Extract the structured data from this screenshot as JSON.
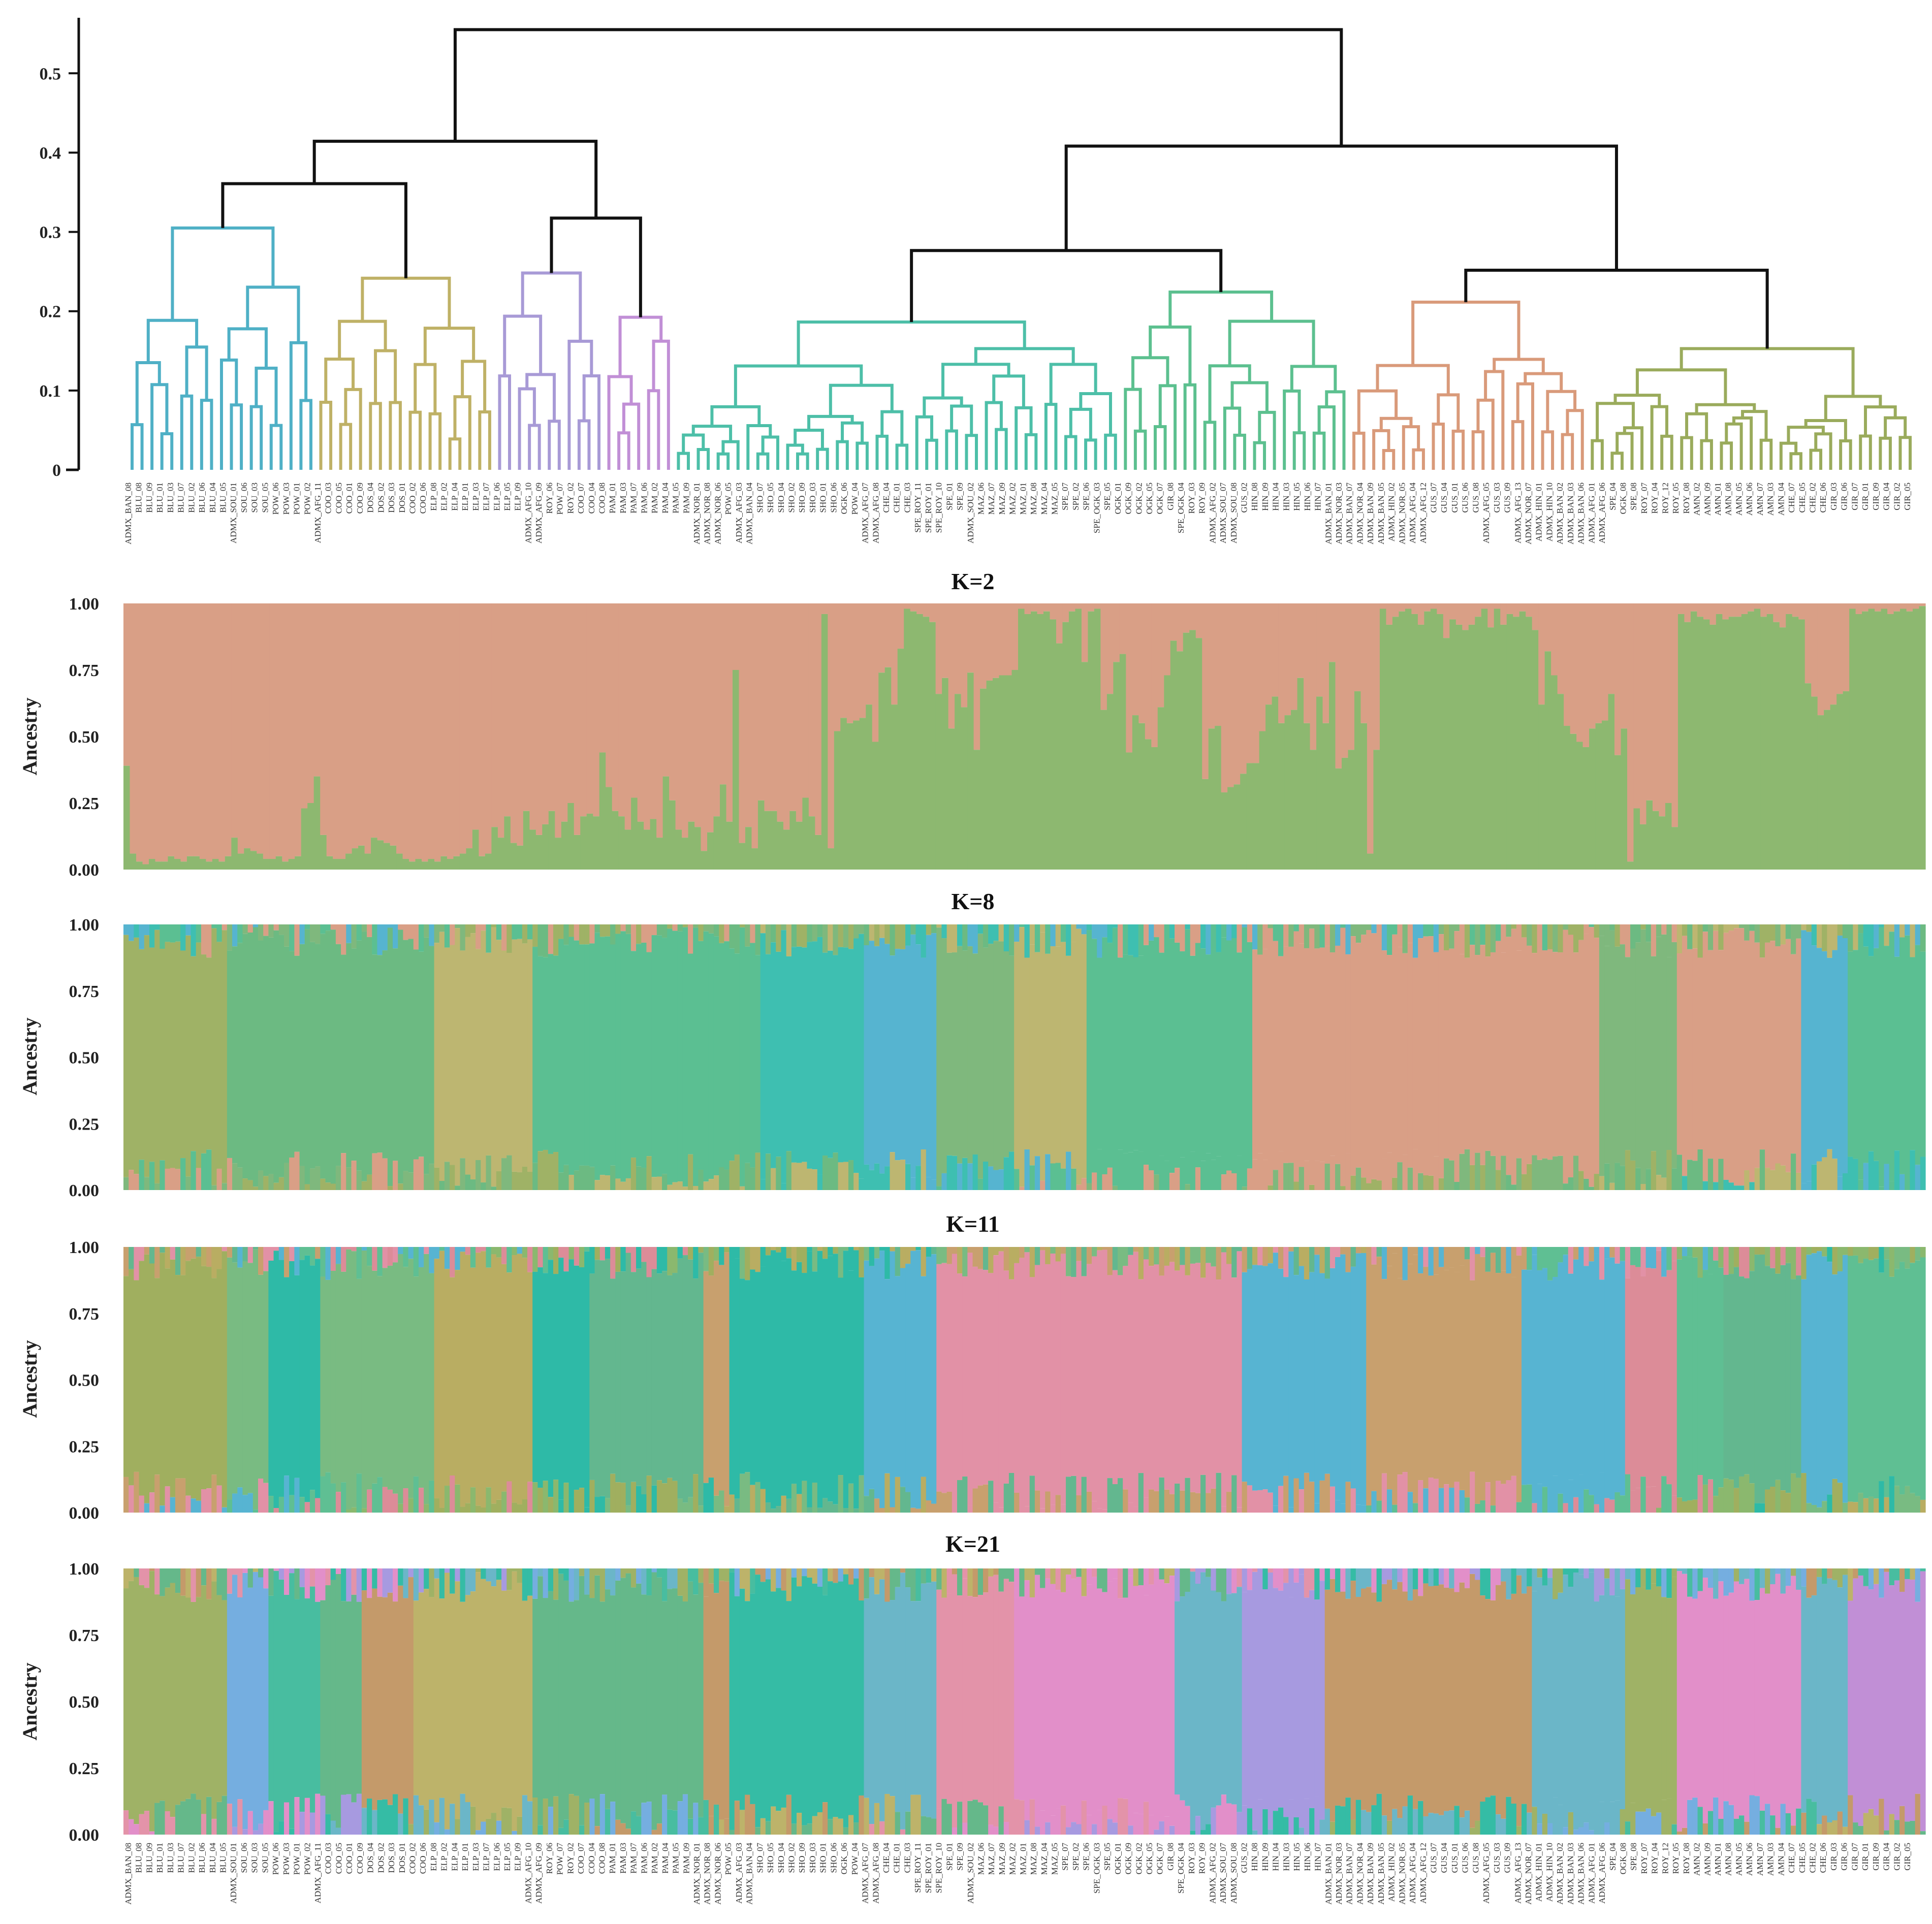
{
  "chart_data": [
    {
      "type": "dendrogram",
      "title": "",
      "ylabel": "",
      "ylim": [
        0,
        0.57
      ],
      "yticks": [
        "0",
        "0.1",
        "0.2",
        "0.3",
        "0.4",
        "0.5"
      ],
      "ytick_values": [
        0,
        0.1,
        0.2,
        0.3,
        0.4,
        0.5
      ],
      "clade_colors": [
        "#9aab5c",
        "#4fb0c6",
        "#4dbfa8",
        "#c9a46a",
        "#bfb166",
        "#5cc08f",
        "#d98aa8",
        "#a89ad6",
        "#d99a7a",
        "#8fbe6b",
        "#c18fd6"
      ],
      "root_height": 0.555
    },
    {
      "type": "stacked_bar",
      "title": "K=2",
      "ylabel": "Ancestry",
      "ylim": [
        0,
        1
      ],
      "yticks": [
        "0.00",
        "0.25",
        "0.50",
        "0.75",
        "1.00"
      ],
      "components": [
        "#d99f86",
        "#8db870"
      ],
      "green_fraction": [
        0.39,
        0.06,
        0.03,
        0.02,
        0.04,
        0.03,
        0.03,
        0.05,
        0.04,
        0.03,
        0.05,
        0.05,
        0.04,
        0.03,
        0.04,
        0.03,
        0.05,
        0.12,
        0.06,
        0.08,
        0.07,
        0.06,
        0.04,
        0.04,
        0.05,
        0.03,
        0.04,
        0.05,
        0.23,
        0.25,
        0.35,
        0.13,
        0.05,
        0.04,
        0.04,
        0.06,
        0.08,
        0.09,
        0.06,
        0.12,
        0.11,
        0.1,
        0.09,
        0.06,
        0.04,
        0.03,
        0.04,
        0.03,
        0.04,
        0.03,
        0.05,
        0.04,
        0.05,
        0.06,
        0.08,
        0.15,
        0.05,
        0.06,
        0.16,
        0.12,
        0.2,
        0.1,
        0.09,
        0.22,
        0.15,
        0.13,
        0.17,
        0.22,
        0.12,
        0.18,
        0.25,
        0.13,
        0.2,
        0.21,
        0.2,
        0.44,
        0.31,
        0.22,
        0.2,
        0.15,
        0.27,
        0.18,
        0.15,
        0.19,
        0.12,
        0.35,
        0.26,
        0.15,
        0.12,
        0.18,
        0.16,
        0.07,
        0.14,
        0.2,
        0.32,
        0.18,
        0.75,
        0.1,
        0.16,
        0.08,
        0.26,
        0.22,
        0.22,
        0.18,
        0.15,
        0.22,
        0.18,
        0.27,
        0.2,
        0.13,
        0.96,
        0.08,
        0.52,
        0.57,
        0.55,
        0.56,
        0.57,
        0.62,
        0.48,
        0.74,
        0.76,
        0.62,
        0.83,
        0.98,
        0.97,
        0.96,
        0.95,
        0.93,
        0.66,
        0.72,
        0.53,
        0.66,
        0.61,
        0.74,
        0.45,
        0.68,
        0.71,
        0.72,
        0.73,
        0.73,
        0.75,
        0.98,
        0.96,
        0.97,
        0.96,
        0.97,
        0.94,
        0.85,
        0.93,
        0.97,
        0.98,
        0.78,
        0.97,
        0.98,
        0.6,
        0.66,
        0.78,
        0.81,
        0.44,
        0.58,
        0.55,
        0.49,
        0.46,
        0.61,
        0.73,
        0.86,
        0.82,
        0.89,
        0.9,
        0.87,
        0.34,
        0.53,
        0.54,
        0.29,
        0.31,
        0.32,
        0.36,
        0.4,
        0.4,
        0.52,
        0.62,
        0.65,
        0.55,
        0.58,
        0.6,
        0.72,
        0.55,
        0.45,
        0.65,
        0.55,
        0.78,
        0.38,
        0.42,
        0.45,
        0.67,
        0.55,
        0.06,
        0.45,
        0.98,
        0.92,
        0.95,
        0.97,
        0.98,
        0.96,
        0.92,
        0.97,
        0.98,
        0.96,
        0.87,
        0.94,
        0.92,
        0.9,
        0.92,
        0.95,
        0.98,
        0.91,
        0.98,
        0.92,
        0.96,
        0.95,
        0.97,
        0.95,
        0.9,
        0.62,
        0.82,
        0.73,
        0.66,
        0.54,
        0.51,
        0.48,
        0.46,
        0.53,
        0.55,
        0.56,
        0.66,
        0.43,
        0.53,
        0.03,
        0.23,
        0.17,
        0.26,
        0.22,
        0.2,
        0.25,
        0.16,
        0.96,
        0.93,
        0.97,
        0.95,
        0.94,
        0.92,
        0.96,
        0.94,
        0.95,
        0.95,
        0.96,
        0.97,
        0.98,
        0.95,
        0.96,
        0.93,
        0.91,
        0.96,
        0.95,
        0.94,
        0.7,
        0.65,
        0.58,
        0.6,
        0.62,
        0.66,
        0.67,
        0.98,
        0.96,
        0.97,
        0.98,
        0.97,
        0.98,
        0.96,
        0.97,
        0.98,
        0.97,
        0.98,
        0.99
      ]
    },
    {
      "type": "stacked_bar",
      "title": "K=8",
      "ylabel": "Ancestry",
      "ylim": [
        0,
        1
      ],
      "yticks": [
        "0.00",
        "0.25",
        "0.50",
        "0.75",
        "1.00"
      ],
      "segments_note": "dominant component per sample group",
      "components": [
        "#9fb266",
        "#6cba82",
        "#bdb671",
        "#3ebfb1",
        "#56b4d0",
        "#5bbf92",
        "#d99f86",
        "#7fb87d"
      ],
      "groups": [
        {
          "from": 0,
          "to": 20,
          "color": "#9fb266"
        },
        {
          "from": 20,
          "to": 60,
          "color": "#6cba82"
        },
        {
          "from": 60,
          "to": 79,
          "color": "#bdb671"
        },
        {
          "from": 79,
          "to": 123,
          "color": "#5bbf92"
        },
        {
          "from": 123,
          "to": 143,
          "color": "#3ebfb1"
        },
        {
          "from": 143,
          "to": 157,
          "color": "#56b4d0"
        },
        {
          "from": 157,
          "to": 172,
          "color": "#7fb87d"
        },
        {
          "from": 172,
          "to": 186,
          "color": "#bdb671"
        },
        {
          "from": 186,
          "to": 218,
          "color": "#5bbf92"
        },
        {
          "from": 218,
          "to": 255,
          "color": "#d99f86"
        },
        {
          "from": 255,
          "to": 285,
          "color": "#d99f86"
        },
        {
          "from": 285,
          "to": 300,
          "color": "#7fb87d"
        },
        {
          "from": 300,
          "to": 324,
          "color": "#d99f86"
        },
        {
          "from": 324,
          "to": 333,
          "color": "#56b4d0"
        },
        {
          "from": 333,
          "to": 348,
          "color": "#5bbf92"
        }
      ]
    },
    {
      "type": "stacked_bar",
      "title": "K=11",
      "ylabel": "Ancestry",
      "ylim": [
        0,
        1
      ],
      "yticks": [
        "0.00",
        "0.25",
        "0.50",
        "0.75",
        "1.00"
      ],
      "components": [
        "#a0af5f",
        "#2ebaa7",
        "#79bb82",
        "#b9ad62",
        "#63b78f",
        "#c8a06e",
        "#e291a6",
        "#57b4d2",
        "#5fbf93",
        "#dc8c98",
        "#8bb86e"
      ],
      "groups": [
        {
          "from": 0,
          "to": 20,
          "color": "#a0af5f"
        },
        {
          "from": 20,
          "to": 28,
          "color": "#79bb82"
        },
        {
          "from": 28,
          "to": 38,
          "color": "#2ebaa7"
        },
        {
          "from": 38,
          "to": 60,
          "color": "#79bb82"
        },
        {
          "from": 60,
          "to": 79,
          "color": "#b9ad62"
        },
        {
          "from": 79,
          "to": 90,
          "color": "#2ebaa7"
        },
        {
          "from": 90,
          "to": 112,
          "color": "#63b78f"
        },
        {
          "from": 112,
          "to": 117,
          "color": "#c8a06e"
        },
        {
          "from": 117,
          "to": 143,
          "color": "#2ebaa7"
        },
        {
          "from": 143,
          "to": 157,
          "color": "#57b4d2"
        },
        {
          "from": 157,
          "to": 216,
          "color": "#e291a6"
        },
        {
          "from": 216,
          "to": 240,
          "color": "#57b4d2"
        },
        {
          "from": 240,
          "to": 270,
          "color": "#c8a06e"
        },
        {
          "from": 270,
          "to": 290,
          "color": "#57b4d2"
        },
        {
          "from": 290,
          "to": 300,
          "color": "#dc8c98"
        },
        {
          "from": 300,
          "to": 309,
          "color": "#5fbf93"
        },
        {
          "from": 309,
          "to": 324,
          "color": "#63b78f"
        },
        {
          "from": 324,
          "to": 333,
          "color": "#57b4d2"
        },
        {
          "from": 333,
          "to": 348,
          "color": "#5fbf93"
        }
      ]
    },
    {
      "type": "stacked_bar",
      "title": "K=21",
      "ylabel": "Ancestry",
      "ylim": [
        0,
        1
      ],
      "yticks": [
        "0.00",
        "0.25",
        "0.50",
        "0.75",
        "1.00"
      ],
      "components": [
        "#9fb266",
        "#75aee0",
        "#48bda0",
        "#c49a6a",
        "#bdb36a",
        "#65b88a",
        "#e393a9",
        "#e28fc9",
        "#a79ae0",
        "#35bca5",
        "#6bb6c8"
      ],
      "groups": [
        {
          "from": 0,
          "to": 20,
          "color": "#9fb266"
        },
        {
          "from": 20,
          "to": 28,
          "color": "#75aee0"
        },
        {
          "from": 28,
          "to": 38,
          "color": "#48bda0"
        },
        {
          "from": 38,
          "to": 46,
          "color": "#65b88a"
        },
        {
          "from": 46,
          "to": 56,
          "color": "#c49a6a"
        },
        {
          "from": 56,
          "to": 79,
          "color": "#bdb36a"
        },
        {
          "from": 79,
          "to": 90,
          "color": "#65b88a"
        },
        {
          "from": 90,
          "to": 112,
          "color": "#65b88a"
        },
        {
          "from": 112,
          "to": 117,
          "color": "#c49a6a"
        },
        {
          "from": 117,
          "to": 143,
          "color": "#35bca5"
        },
        {
          "from": 143,
          "to": 157,
          "color": "#6bb6c8"
        },
        {
          "from": 157,
          "to": 172,
          "color": "#e393a9"
        },
        {
          "from": 172,
          "to": 203,
          "color": "#e28fc9"
        },
        {
          "from": 203,
          "to": 216,
          "color": "#6bb6c8"
        },
        {
          "from": 216,
          "to": 232,
          "color": "#a79ae0"
        },
        {
          "from": 232,
          "to": 272,
          "color": "#c49a6a"
        },
        {
          "from": 272,
          "to": 290,
          "color": "#6bb6c8"
        },
        {
          "from": 290,
          "to": 300,
          "color": "#9fb266"
        },
        {
          "from": 300,
          "to": 324,
          "color": "#e28fc9"
        },
        {
          "from": 324,
          "to": 333,
          "color": "#6bb6c8"
        },
        {
          "from": 333,
          "to": 348,
          "color": "#c18fd6"
        }
      ]
    }
  ],
  "sample_labels_top": [
    "ADMX_BAN_08",
    "BLU_08",
    "BLU_09",
    "BLU_01",
    "BLU_03",
    "BLU_07",
    "BLU_02",
    "BLU_06",
    "BLU_04",
    "BLU_05",
    "ADMX_SOU_01",
    "SOU_06",
    "SOU_03",
    "SOU_05",
    "POW_06",
    "POW_03",
    "POW_01",
    "POW_02",
    "ADMX_AFG_11",
    "COO_03",
    "COO_05",
    "COO_01",
    "COO_09",
    "DOS_04",
    "DOS_02",
    "DOS_03",
    "DOS_01",
    "COO_02",
    "COO_06",
    "ELP_08",
    "ELP_02",
    "ELP_04",
    "ELP_01",
    "ELP_03",
    "ELP_07",
    "ELP_06",
    "ELP_05",
    "ELP_09",
    "ADMX_AFG_10",
    "ADMX_AFG_09",
    "ROY_06",
    "POW_07",
    "ROY_02",
    "COO_07",
    "COO_04",
    "COO_08",
    "PAM_01",
    "PAM_03",
    "PAM_07",
    "PAM_06",
    "PAM_02",
    "PAM_04",
    "PAM_05",
    "PAM_09",
    "ADMX_NOR_01",
    "ADMX_NOR_08",
    "ADMX_NOR_06",
    "POW_05",
    "ADMX_AFG_03",
    "ADMX_BAN_04",
    "SHO_07",
    "SHO_05",
    "SHO_04",
    "SHO_02",
    "SHO_09",
    "SHO_03",
    "SHO_01",
    "SHO_06",
    "OGK_06",
    "POW_04",
    "ADMX_AFG_07",
    "ADMX_AFG_08",
    "CHE_04",
    "CHE_01",
    "CHE_03",
    "SPE_ROY_11",
    "SPE_ROY_01",
    "SPE_ROY_10",
    "SPE_01",
    "SPE_09",
    "ADMX_SOU_02",
    "MAZ_06",
    "MAZ_07",
    "MAZ_09",
    "MAZ_02",
    "MAZ_01",
    "MAZ_08",
    "MAZ_04",
    "MAZ_05",
    "SPE_07",
    "SPE_02",
    "SPE_06",
    "SPE_OGK_03",
    "SPE_05",
    "OGK_01",
    "OGK_09",
    "OGK_02",
    "OGK_05",
    "OGK_07",
    "GIR_08",
    "SPE_OGK_04",
    "ROY_03",
    "ROY_09",
    "ADMX_AFG_02",
    "ADMX_SOU_07",
    "ADMX_SOU_08",
    "GUS_02",
    "HIN_08",
    "HIN_09",
    "HIN_04",
    "HIN_03",
    "HIN_05",
    "HIN_06",
    "HIN_07",
    "ADMX_BAN_01",
    "ADMX_NOR_03",
    "ADMX_BAN_07",
    "ADMX_NOR_04",
    "ADMX_BAN_09",
    "ADMX_BAN_05",
    "ADMX_HIN_02",
    "ADMX_NOR_05",
    "ADMX_AFG_04",
    "ADMX_AFG_12",
    "GUS_07",
    "GUS_04",
    "GUS_01",
    "GUS_06",
    "GUS_08",
    "ADMX_AFG_05",
    "GUS_03",
    "GUS_09",
    "ADMX_AFG_13",
    "ADMX_NOR_07",
    "ADMX_HIN_01",
    "ADMX_HIN_10",
    "ADMX_BAN_02",
    "ADMX_BAN_03",
    "ADMX_BAN_06",
    "ADMX_AFG_01",
    "ADMX_AFG_06",
    "SPE_04",
    "OGK_08",
    "SPE_08",
    "ROY_07",
    "ROY_04",
    "ROY_12",
    "ROY_05",
    "ROY_08",
    "AMN_02",
    "AMN_09",
    "AMN_01",
    "AMN_08",
    "AMN_05",
    "AMN_06",
    "AMN_07",
    "AMN_03",
    "AMN_04",
    "CHE_07",
    "CHE_05",
    "CHE_02",
    "CHE_06",
    "GIR_03",
    "GIR_06",
    "GIR_07",
    "GIR_01",
    "GIR_09",
    "GIR_04",
    "GIR_02",
    "GIR_05"
  ]
}
